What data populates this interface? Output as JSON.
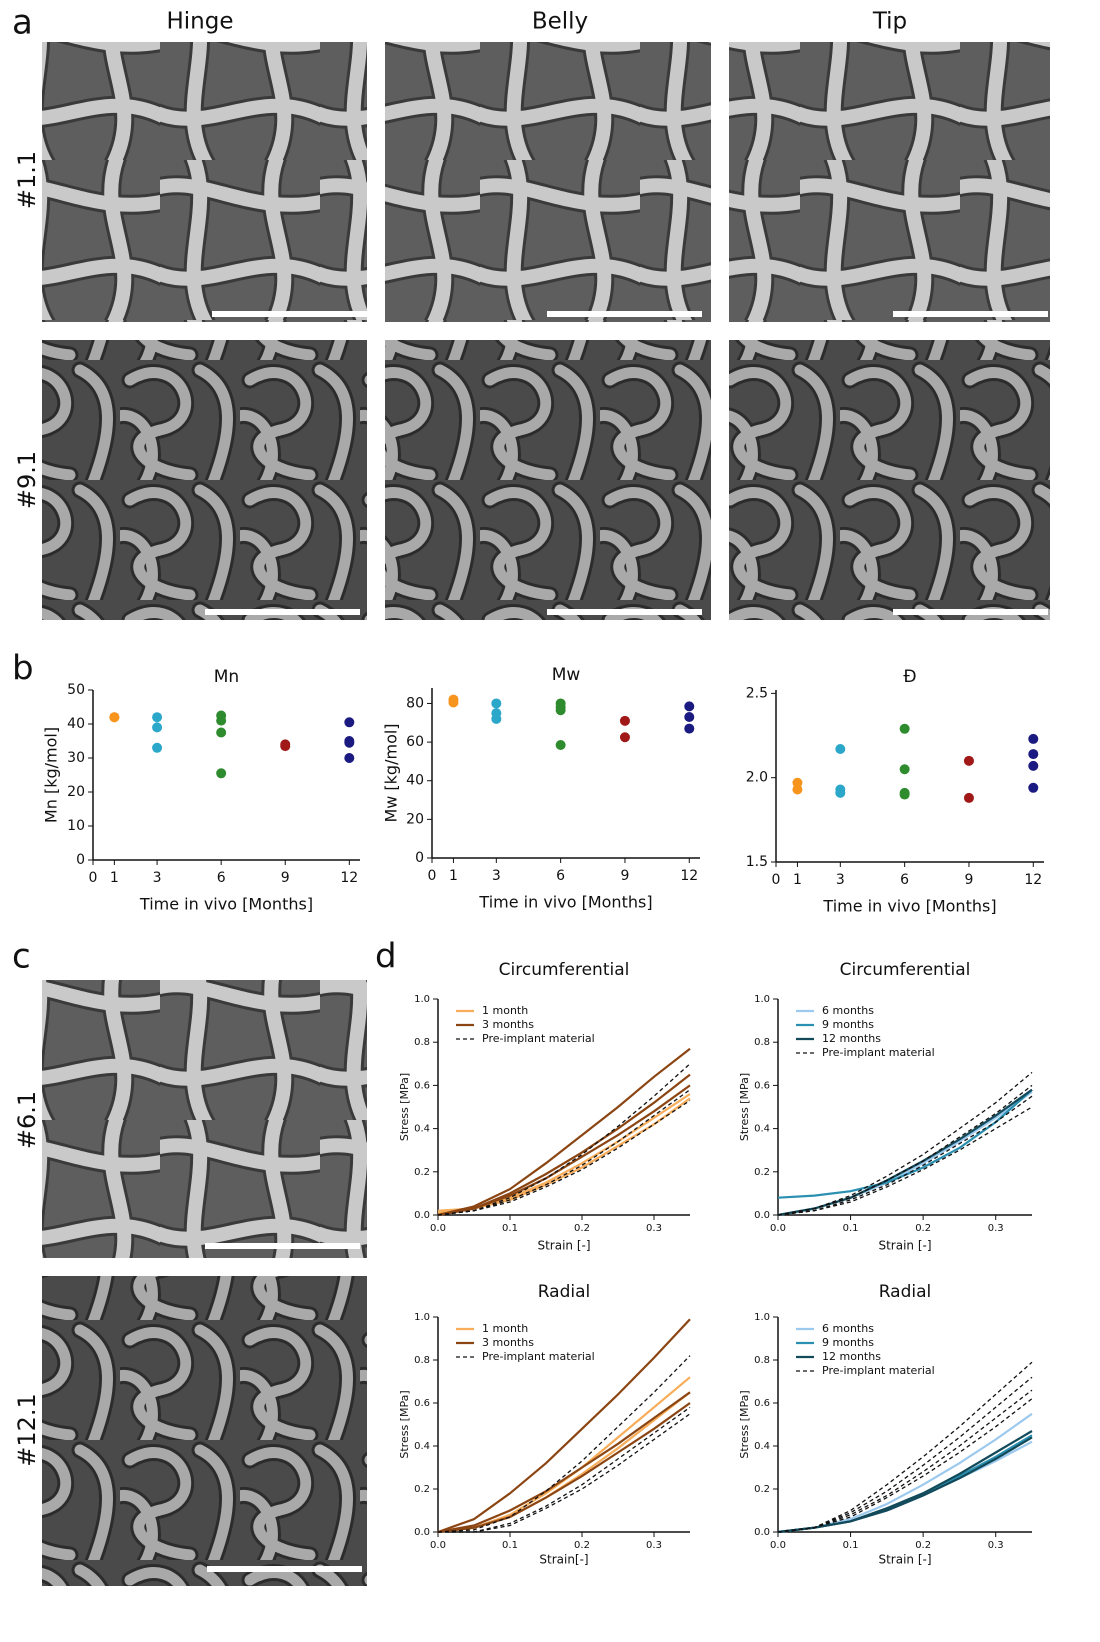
{
  "panel_labels": [
    "a",
    "b",
    "c",
    "d"
  ],
  "columns": [
    "Hinge",
    "Belly",
    "Tip"
  ],
  "rows_a": [
    "#1.1",
    "#9.1"
  ],
  "rows_c": [
    "#6.1",
    "#12.1"
  ],
  "chart_data": [
    {
      "type": "scatter",
      "title": "Mn",
      "x_label": "Time in vivo [Months]",
      "y_label": "Mn [kg/mol]",
      "xlim": [
        0,
        12.5
      ],
      "xticks": [
        0,
        1,
        3,
        6,
        9,
        12
      ],
      "ylim": [
        0,
        50
      ],
      "yticks": [
        0,
        10,
        20,
        30,
        40,
        50
      ],
      "series": [
        {
          "color": "#f7941d",
          "x": [
            1,
            1
          ],
          "values": [
            42,
            42
          ]
        },
        {
          "color": "#2aa7c9",
          "x": [
            3,
            3,
            3
          ],
          "values": [
            42,
            39,
            33
          ]
        },
        {
          "color": "#2e8b2e",
          "x": [
            6,
            6,
            6,
            6
          ],
          "values": [
            42.5,
            41,
            37.5,
            25.5
          ]
        },
        {
          "color": "#a01818",
          "x": [
            9,
            9
          ],
          "values": [
            33.5,
            34
          ]
        },
        {
          "color": "#1a1a80",
          "x": [
            12,
            12,
            12,
            12
          ],
          "values": [
            40.5,
            35,
            34.5,
            30
          ]
        }
      ]
    },
    {
      "type": "scatter",
      "title": "Mw",
      "x_label": "Time in vivo [Months]",
      "y_label": "Mw [kg/mol]",
      "xlim": [
        0,
        12.5
      ],
      "xticks": [
        0,
        1,
        3,
        6,
        9,
        12
      ],
      "ylim": [
        0,
        88
      ],
      "yticks": [
        0,
        20,
        40,
        60,
        80
      ],
      "series": [
        {
          "color": "#f7941d",
          "x": [
            1,
            1
          ],
          "values": [
            82,
            80.5
          ]
        },
        {
          "color": "#2aa7c9",
          "x": [
            3,
            3,
            3
          ],
          "values": [
            80,
            75,
            72
          ]
        },
        {
          "color": "#2e8b2e",
          "x": [
            6,
            6,
            6,
            6
          ],
          "values": [
            80,
            78,
            76.5,
            58.5
          ]
        },
        {
          "color": "#a01818",
          "x": [
            9,
            9
          ],
          "values": [
            71,
            62.5
          ]
        },
        {
          "color": "#1a1a80",
          "x": [
            12,
            12,
            12
          ],
          "values": [
            78.5,
            73,
            67
          ]
        }
      ]
    },
    {
      "type": "scatter",
      "title": "Đ",
      "x_label": "Time in vivo [Months]",
      "xlim": [
        0,
        12.5
      ],
      "xticks": [
        0,
        1,
        3,
        6,
        9,
        12
      ],
      "ylim": [
        1.5,
        2.52
      ],
      "yticks": [
        {
          "value": 1.5,
          "label": "1.5"
        },
        {
          "value": 2,
          "label": "2.0"
        },
        {
          "value": 2.5,
          "label": "2.5"
        }
      ],
      "series": [
        {
          "color": "#f7941d",
          "x": [
            1,
            1
          ],
          "values": [
            1.97,
            1.93
          ]
        },
        {
          "color": "#2aa7c9",
          "x": [
            3,
            3,
            3
          ],
          "values": [
            2.17,
            1.93,
            1.91
          ]
        },
        {
          "color": "#2e8b2e",
          "x": [
            6,
            6,
            6,
            6
          ],
          "values": [
            2.29,
            2.05,
            1.91,
            1.9
          ]
        },
        {
          "color": "#a01818",
          "x": [
            9,
            9
          ],
          "values": [
            2.1,
            1.88
          ]
        },
        {
          "color": "#1a1a80",
          "x": [
            12,
            12,
            12,
            12
          ],
          "values": [
            2.23,
            2.14,
            2.07,
            1.94
          ]
        }
      ]
    },
    {
      "type": "line",
      "title": "Circumferential",
      "x_label": "Strain [-]",
      "y_label": "Stress [MPa]",
      "xlim": [
        0,
        0.35
      ],
      "xticks": [
        {
          "value": 0,
          "label": "0.0"
        },
        0.1,
        0.2,
        0.3
      ],
      "ylim": [
        0,
        1
      ],
      "yticks": [
        {
          "value": 0,
          "label": "0.0"
        },
        0.2,
        0.4,
        0.6,
        0.8,
        {
          "value": 1,
          "label": "1.0"
        }
      ],
      "x": [
        0,
        0.05,
        0.1,
        0.15,
        0.2,
        0.25,
        0.3,
        0.35
      ],
      "series": [
        {
          "name": "1 month",
          "color": "#f8ad5a",
          "dashed": false,
          "curves": [
            [
              0.01,
              0.03,
              0.08,
              0.15,
              0.24,
              0.34,
              0.45,
              0.56
            ],
            [
              0.02,
              0.03,
              0.07,
              0.14,
              0.22,
              0.32,
              0.42,
              0.54
            ]
          ]
        },
        {
          "name": "3 months",
          "color": "#8b4513",
          "dashed": false,
          "curves": [
            [
              0,
              0.04,
              0.12,
              0.24,
              0.37,
              0.5,
              0.64,
              0.77
            ],
            [
              0,
              0.03,
              0.1,
              0.19,
              0.29,
              0.4,
              0.52,
              0.65
            ],
            [
              0,
              0.03,
              0.09,
              0.17,
              0.27,
              0.37,
              0.48,
              0.6
            ]
          ]
        },
        {
          "name": "Pre-implant material",
          "color": "#111111",
          "dashed": true,
          "curves": [
            [
              0,
              0.02,
              0.08,
              0.17,
              0.28,
              0.41,
              0.55,
              0.7
            ],
            [
              0,
              0.02,
              0.07,
              0.14,
              0.23,
              0.34,
              0.46,
              0.58
            ],
            [
              0,
              0.02,
              0.06,
              0.13,
              0.21,
              0.31,
              0.42,
              0.53
            ]
          ]
        }
      ]
    },
    {
      "type": "line",
      "title": "Circumferential",
      "x_label": "Strain [-]",
      "y_label": "Stress [MPa]",
      "xlim": [
        0,
        0.35
      ],
      "xticks": [
        {
          "value": 0,
          "label": "0.0"
        },
        0.1,
        0.2,
        0.3
      ],
      "ylim": [
        0,
        1
      ],
      "yticks": [
        {
          "value": 0,
          "label": "0.0"
        },
        0.2,
        0.4,
        0.6,
        0.8,
        {
          "value": 1,
          "label": "1.0"
        }
      ],
      "x": [
        0,
        0.05,
        0.1,
        0.15,
        0.2,
        0.25,
        0.3,
        0.35
      ],
      "series": [
        {
          "name": "6 months",
          "color": "#9cc9ee",
          "dashed": false,
          "curves": [
            [
              0,
              0.03,
              0.08,
              0.15,
              0.24,
              0.34,
              0.45,
              0.57
            ]
          ]
        },
        {
          "name": "9 months",
          "color": "#2a8fb0",
          "dashed": false,
          "curves": [
            [
              0.08,
              0.09,
              0.11,
              0.15,
              0.22,
              0.31,
              0.43,
              0.58
            ]
          ]
        },
        {
          "name": "12 months",
          "color": "#134a5a",
          "dashed": false,
          "curves": [
            [
              0,
              0.03,
              0.08,
              0.16,
              0.25,
              0.35,
              0.46,
              0.58
            ]
          ]
        },
        {
          "name": "Pre-implant material",
          "color": "#111111",
          "dashed": true,
          "curves": [
            [
              0,
              0.03,
              0.09,
              0.18,
              0.28,
              0.4,
              0.52,
              0.66
            ],
            [
              0,
              0.03,
              0.08,
              0.16,
              0.25,
              0.36,
              0.47,
              0.6
            ],
            [
              0,
              0.02,
              0.07,
              0.14,
              0.23,
              0.33,
              0.43,
              0.55
            ],
            [
              0,
              0.02,
              0.06,
              0.13,
              0.21,
              0.3,
              0.4,
              0.5
            ]
          ]
        }
      ]
    },
    {
      "type": "line",
      "title": "Radial",
      "x_label": "Strain[-]",
      "y_label": "Stress [MPa]",
      "xlim": [
        0,
        0.35
      ],
      "xticks": [
        {
          "value": 0,
          "label": "0.0"
        },
        0.1,
        0.2,
        0.3
      ],
      "ylim": [
        0,
        1
      ],
      "yticks": [
        {
          "value": 0,
          "label": "0.0"
        },
        0.2,
        0.4,
        0.6,
        0.8,
        {
          "value": 1,
          "label": "1.0"
        }
      ],
      "x": [
        0,
        0.05,
        0.1,
        0.15,
        0.2,
        0.25,
        0.3,
        0.35
      ],
      "series": [
        {
          "name": "1 month",
          "color": "#f8ad5a",
          "dashed": false,
          "curves": [
            [
              0,
              0.02,
              0.08,
              0.18,
              0.3,
              0.44,
              0.58,
              0.72
            ],
            [
              0,
              0.02,
              0.07,
              0.16,
              0.27,
              0.39,
              0.52,
              0.65
            ]
          ]
        },
        {
          "name": "3 months",
          "color": "#8b4513",
          "dashed": false,
          "curves": [
            [
              0,
              0.06,
              0.18,
              0.32,
              0.48,
              0.64,
              0.81,
              0.99
            ],
            [
              0,
              0.03,
              0.1,
              0.19,
              0.3,
              0.41,
              0.53,
              0.65
            ],
            [
              0,
              0.02,
              0.07,
              0.16,
              0.26,
              0.37,
              0.48,
              0.6
            ]
          ]
        },
        {
          "name": "Pre-implant material",
          "color": "#111111",
          "dashed": true,
          "curves": [
            [
              0,
              0.01,
              0.07,
              0.19,
              0.33,
              0.49,
              0.65,
              0.82
            ],
            [
              0,
              0,
              0.04,
              0.12,
              0.22,
              0.34,
              0.46,
              0.58
            ],
            [
              0,
              0,
              0.03,
              0.11,
              0.2,
              0.31,
              0.43,
              0.55
            ]
          ]
        }
      ]
    },
    {
      "type": "line",
      "title": "Radial",
      "x_label": "Strain [-]",
      "y_label": "Stress [MPa]",
      "xlim": [
        0,
        0.35
      ],
      "xticks": [
        {
          "value": 0,
          "label": "0.0"
        },
        0.1,
        0.2,
        0.3
      ],
      "ylim": [
        0,
        1
      ],
      "yticks": [
        {
          "value": 0,
          "label": "0.0"
        },
        0.2,
        0.4,
        0.6,
        0.8,
        {
          "value": 1,
          "label": "1.0"
        }
      ],
      "x": [
        0,
        0.05,
        0.1,
        0.15,
        0.2,
        0.25,
        0.3,
        0.35
      ],
      "series": [
        {
          "name": "6 months",
          "color": "#9cc9ee",
          "dashed": false,
          "curves": [
            [
              0,
              0.02,
              0.06,
              0.13,
              0.22,
              0.32,
              0.43,
              0.55
            ],
            [
              0,
              0.02,
              0.05,
              0.1,
              0.17,
              0.25,
              0.33,
              0.42
            ]
          ]
        },
        {
          "name": "9 months",
          "color": "#2a8fb0",
          "dashed": false,
          "curves": [
            [
              0,
              0.02,
              0.05,
              0.11,
              0.18,
              0.26,
              0.35,
              0.45
            ]
          ]
        },
        {
          "name": "12 months",
          "color": "#134a5a",
          "dashed": false,
          "curves": [
            [
              0,
              0.02,
              0.05,
              0.1,
              0.17,
              0.25,
              0.34,
              0.44
            ],
            [
              0,
              0.02,
              0.05,
              0.11,
              0.18,
              0.27,
              0.37,
              0.47
            ]
          ]
        },
        {
          "name": "Pre-implant material",
          "color": "#111111",
          "dashed": true,
          "curves": [
            [
              0,
              0.02,
              0.1,
              0.22,
              0.35,
              0.49,
              0.64,
              0.79
            ],
            [
              0,
              0.02,
              0.09,
              0.19,
              0.31,
              0.44,
              0.58,
              0.72
            ],
            [
              0,
              0.02,
              0.08,
              0.17,
              0.28,
              0.4,
              0.53,
              0.66
            ],
            [
              0,
              0.02,
              0.07,
              0.16,
              0.26,
              0.37,
              0.49,
              0.62
            ]
          ]
        }
      ]
    }
  ]
}
